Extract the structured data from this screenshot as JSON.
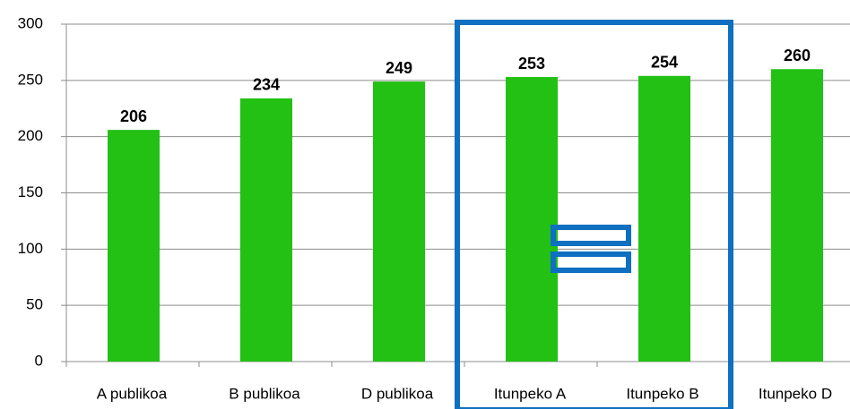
{
  "chart_data": {
    "type": "bar",
    "categories": [
      "A publikoa",
      "B publikoa",
      "D publikoa",
      "Itunpeko A",
      "Itunpeko B",
      "Itunpeko D"
    ],
    "values": [
      206,
      234,
      249,
      253,
      254,
      260
    ],
    "color": "#22c114",
    "ylim": [
      0,
      300
    ],
    "yticks": [
      0,
      50,
      100,
      150,
      200,
      250,
      300
    ],
    "grid": true
  }
}
